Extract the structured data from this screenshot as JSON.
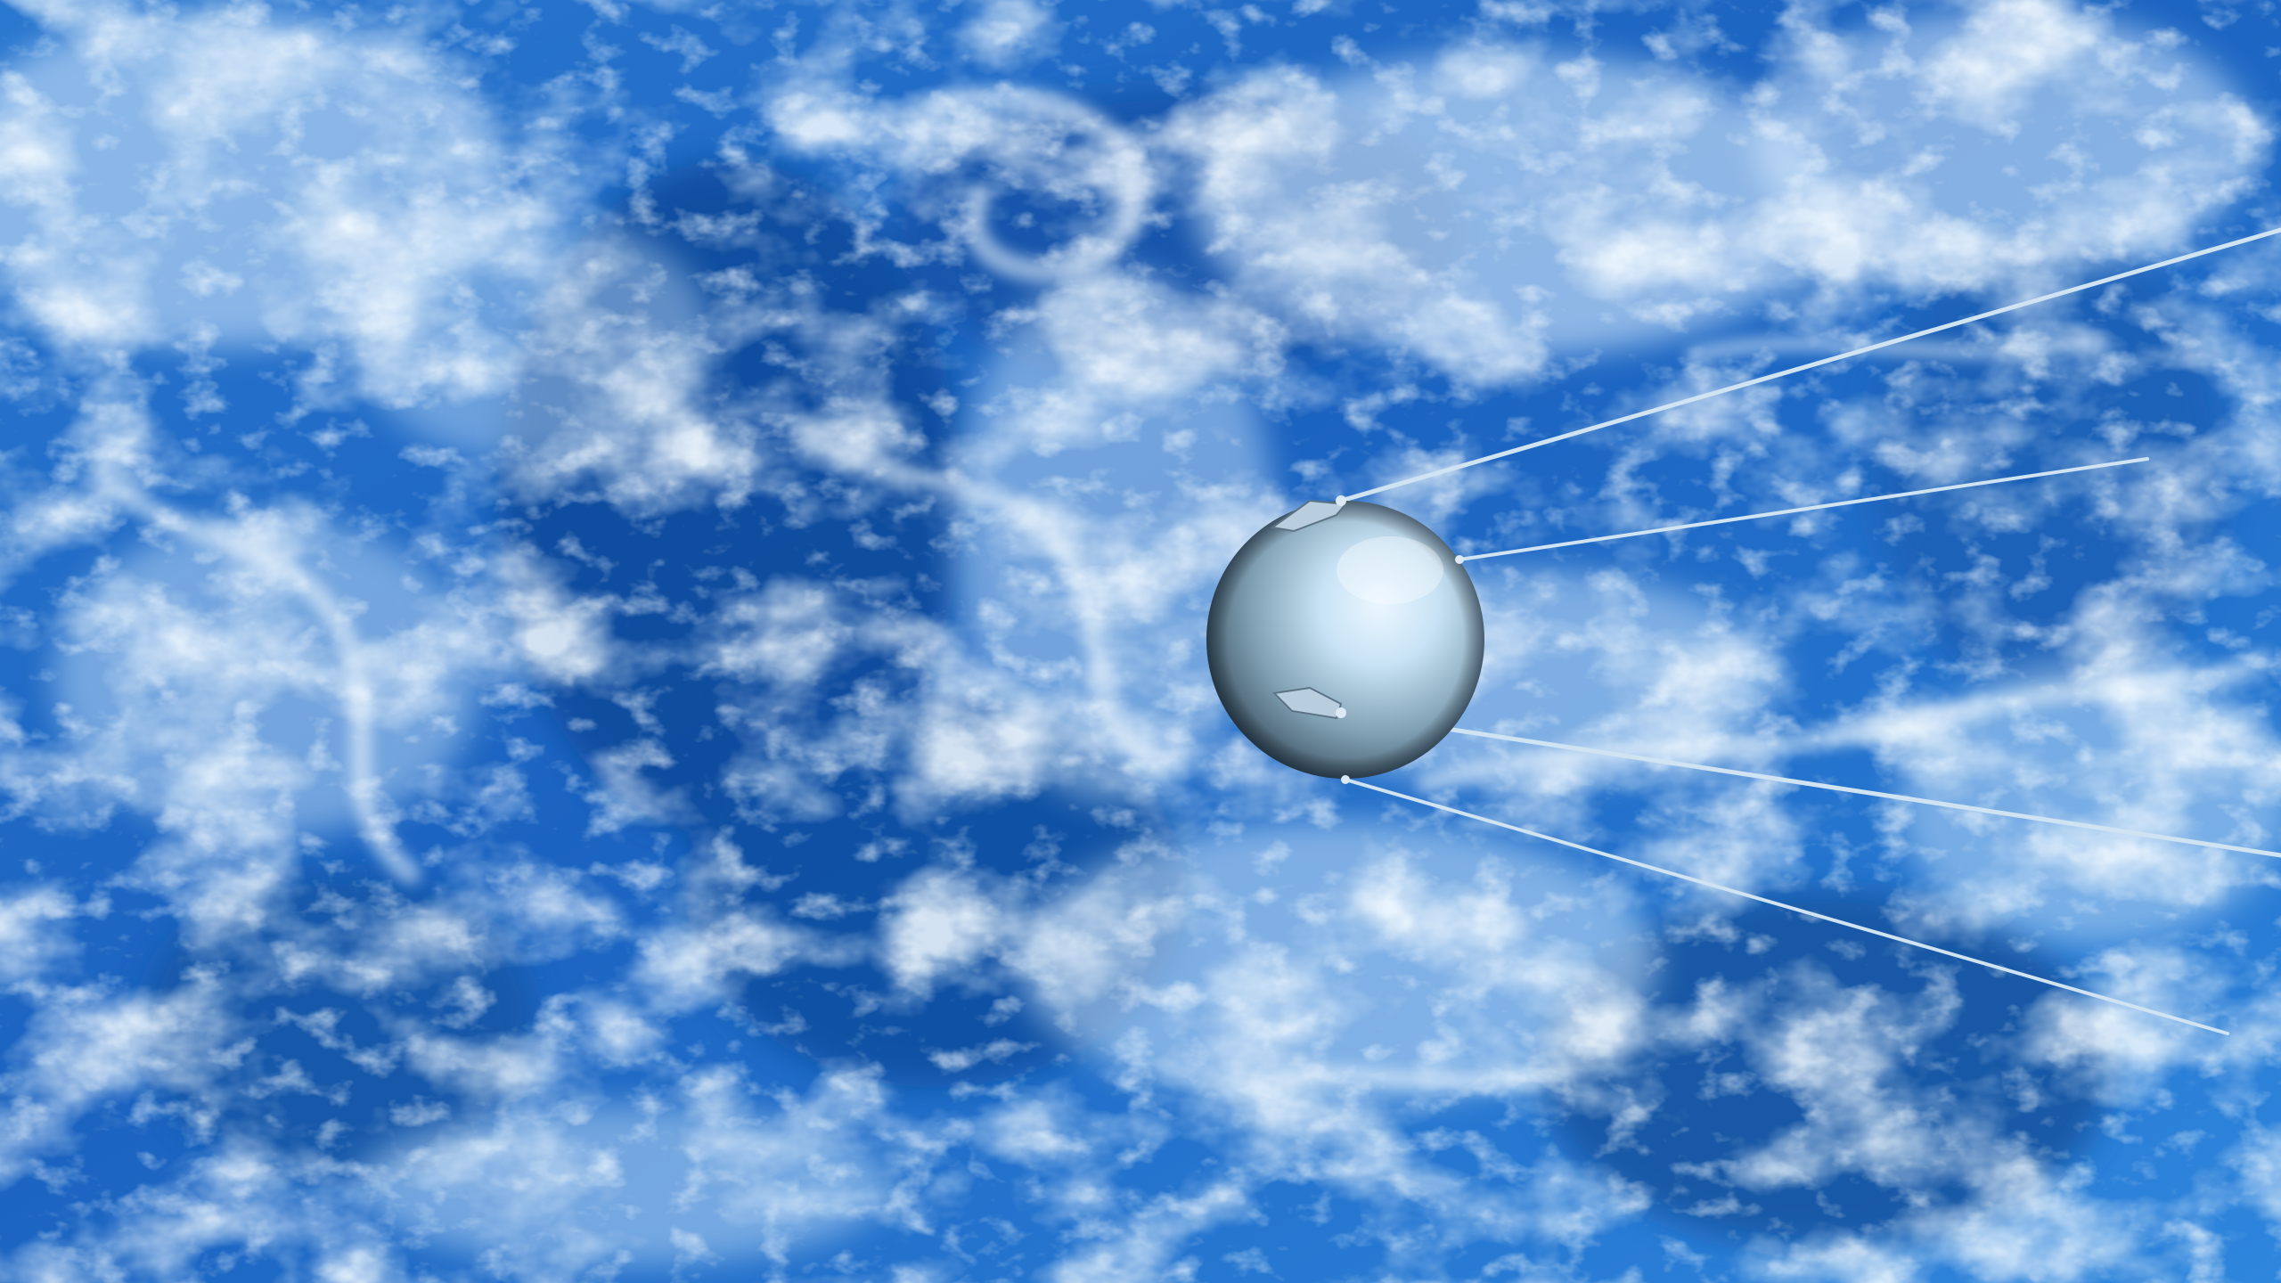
{
  "scene": {
    "subject": "satellite",
    "background": "earth-from-orbit",
    "colors": {
      "ocean_deep": "#0f4a9a",
      "ocean_mid": "#2a78d0",
      "cloud": "#dcefff",
      "cloud_bright": "#f4fbff",
      "sphere_light": "#eaf6ff",
      "sphere_mid": "#7f9fb3",
      "sphere_dark": "#263846",
      "antenna": "#cfe3f2"
    }
  }
}
